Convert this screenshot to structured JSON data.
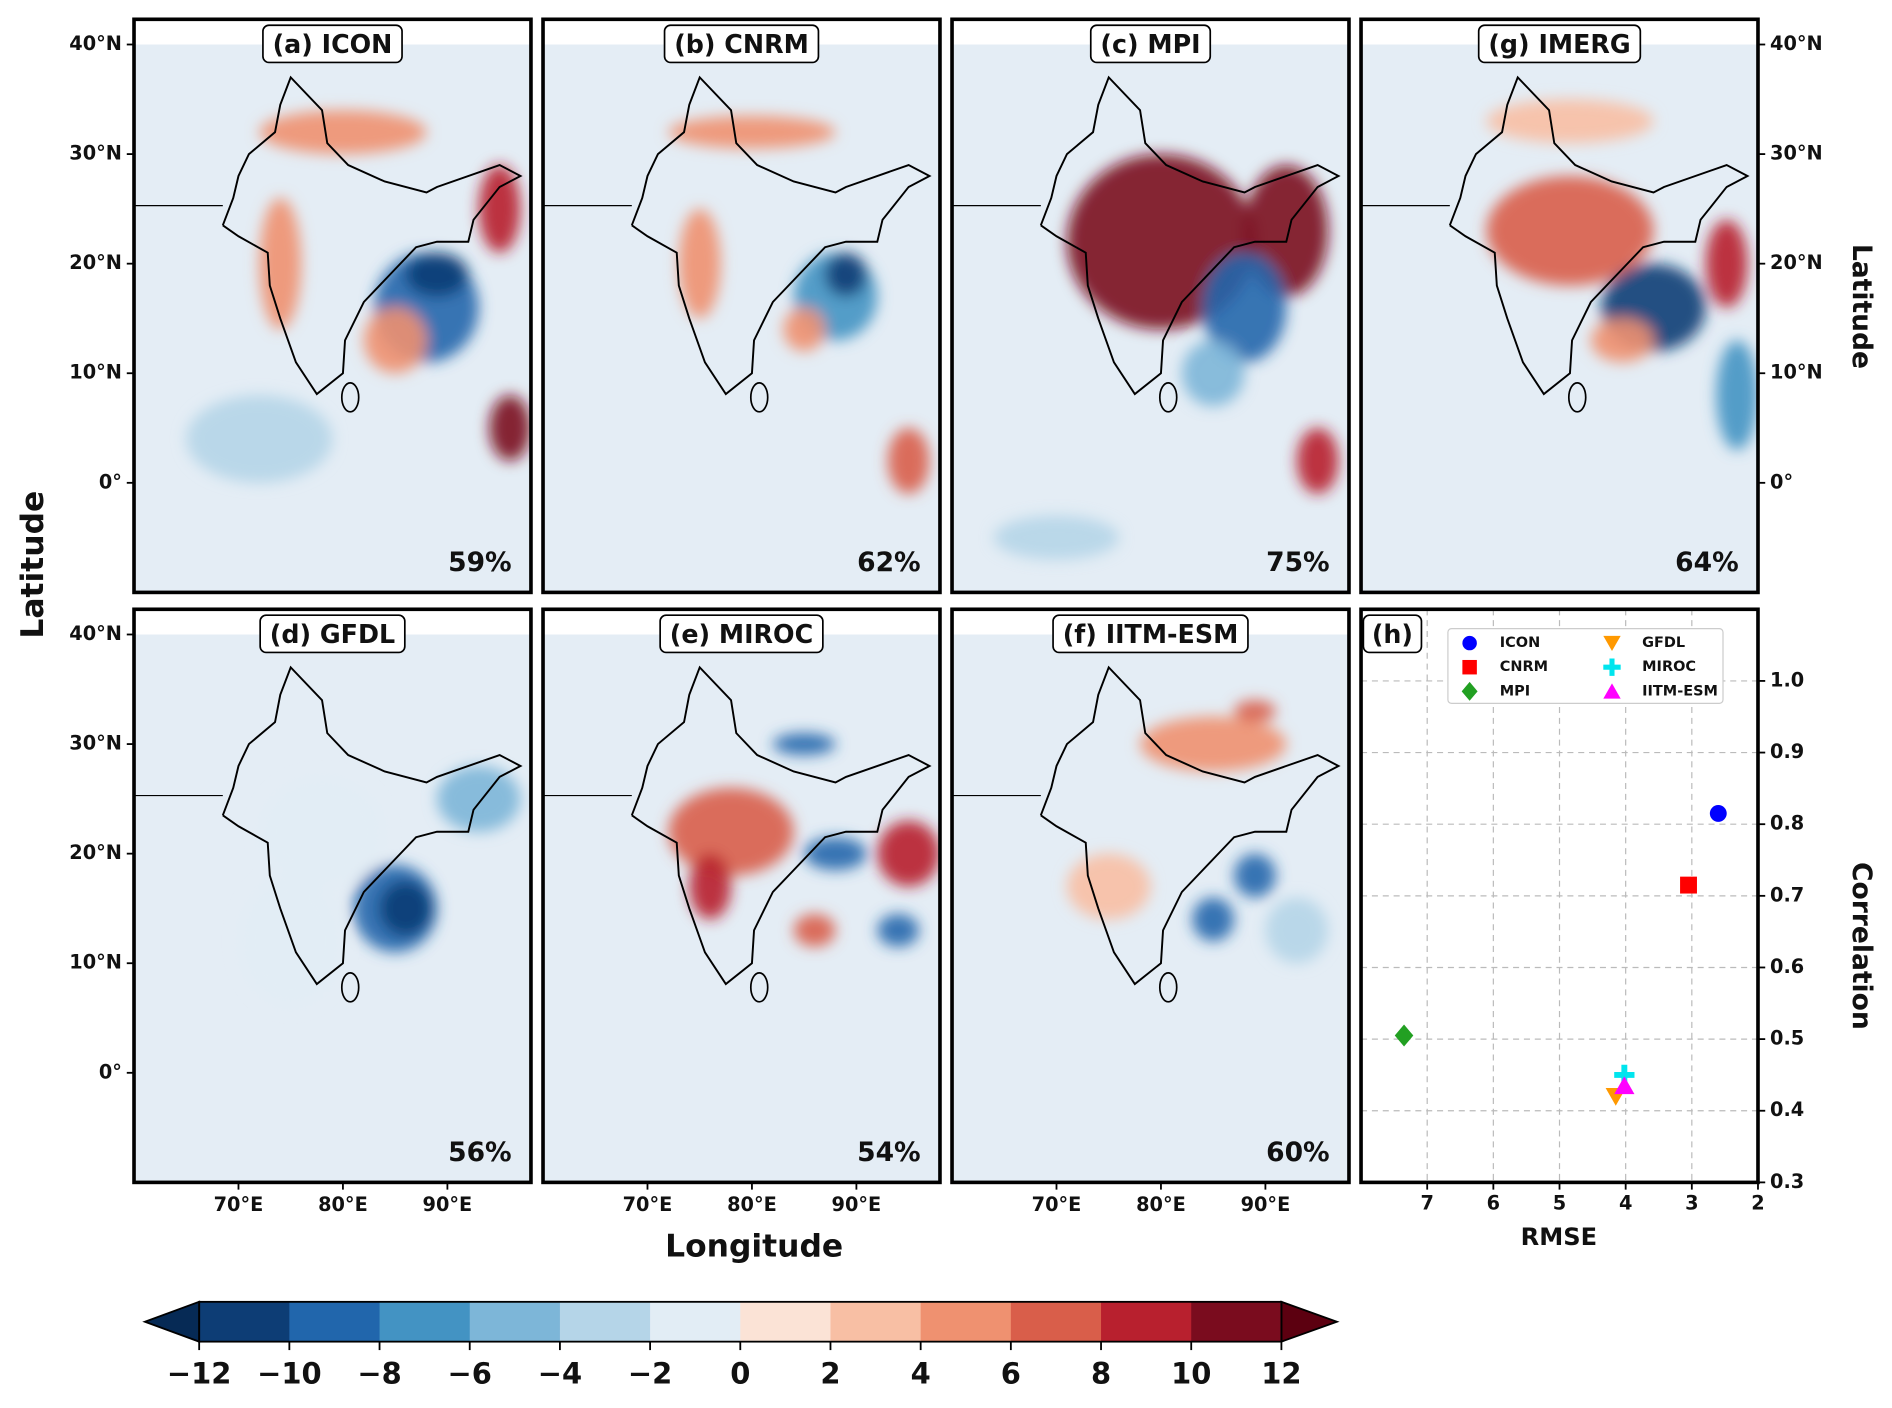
{
  "maps": {
    "xlabel": "Longitude",
    "ylabel": "Latitude",
    "ylabel_right": "Latitude",
    "xlim": [
      60,
      98
    ],
    "ylim": [
      -10,
      42.3
    ],
    "xticks": [
      {
        "value": 70,
        "label": "70°E"
      },
      {
        "value": 80,
        "label": "80°E"
      },
      {
        "value": 90,
        "label": "90°E"
      }
    ],
    "yticks": [
      {
        "value": 40,
        "label": "40°N"
      },
      {
        "value": 30,
        "label": "30°N"
      },
      {
        "value": 20,
        "label": "20°N"
      },
      {
        "value": 10,
        "label": "10°N"
      },
      {
        "value": 0,
        "label": "0°"
      }
    ],
    "panels": [
      {
        "label": "(a)  ICON",
        "score": "59%"
      },
      {
        "label": "(b)  CNRM",
        "score": "62%"
      },
      {
        "label": "(c)  MPI",
        "score": "75%"
      },
      {
        "label": "(g)  IMERG",
        "score": "64%"
      },
      {
        "label": "(d)  GFDL",
        "score": "56%"
      },
      {
        "label": "(e)  MIROC",
        "score": "54%"
      },
      {
        "label": "(f)  IITM-ESM",
        "score": "60%"
      }
    ]
  },
  "chart_data": {
    "type": "scatter",
    "label": "(h)",
    "xlabel": "RMSE",
    "ylabel": "Correlation",
    "xlim": [
      8,
      2
    ],
    "ylim": [
      0.3,
      1.1
    ],
    "xticks": [
      7,
      6,
      5,
      4,
      3,
      2
    ],
    "yticks": [
      0.3,
      0.4,
      0.5,
      0.6,
      0.7,
      0.8,
      0.9,
      {
        "value": 1,
        "label": "1.0"
      }
    ],
    "grid": true,
    "series": [
      {
        "name": "ICON",
        "color": "#0000ff",
        "marker": "circle",
        "x": [
          2.6
        ],
        "values": [
          0.815
        ]
      },
      {
        "name": "CNRM",
        "color": "#ff0000",
        "marker": "square",
        "x": [
          3.05
        ],
        "values": [
          0.715
        ]
      },
      {
        "name": "MPI",
        "color": "#22a022",
        "marker": "diamond",
        "x": [
          7.35
        ],
        "values": [
          0.505
        ]
      },
      {
        "name": "GFDL",
        "color": "#ff9900",
        "marker": "triangle-down",
        "x": [
          4.15
        ],
        "values": [
          0.42
        ]
      },
      {
        "name": "MIROC",
        "color": "#00e5ee",
        "marker": "plus",
        "x": [
          4.02
        ],
        "values": [
          0.45
        ]
      },
      {
        "name": "IITM-ESM",
        "color": "#ff00ff",
        "marker": "triangle-up",
        "x": [
          4.02
        ],
        "values": [
          0.435
        ]
      }
    ]
  },
  "colorbar": {
    "lim": [
      -12,
      12
    ],
    "ticks": [
      {
        "value": -12,
        "label": "−12"
      },
      {
        "value": -10,
        "label": "−10"
      },
      {
        "value": -8,
        "label": "−8"
      },
      {
        "value": -6,
        "label": "−6"
      },
      {
        "value": -4,
        "label": "−4"
      },
      {
        "value": -2,
        "label": "−2"
      },
      0,
      2,
      4,
      6,
      8,
      10,
      12
    ],
    "colors": [
      "#0d3d75",
      "#2166ac",
      "#4393c3",
      "#7db6d8",
      "#b5d5e8",
      "#e2edf5",
      "#fbe3d6",
      "#f8bfa4",
      "#ef9170",
      "#d95e4a",
      "#b8202e",
      "#7a0c1e"
    ],
    "extend_colors": [
      "#062a55",
      "#5c0010"
    ]
  }
}
